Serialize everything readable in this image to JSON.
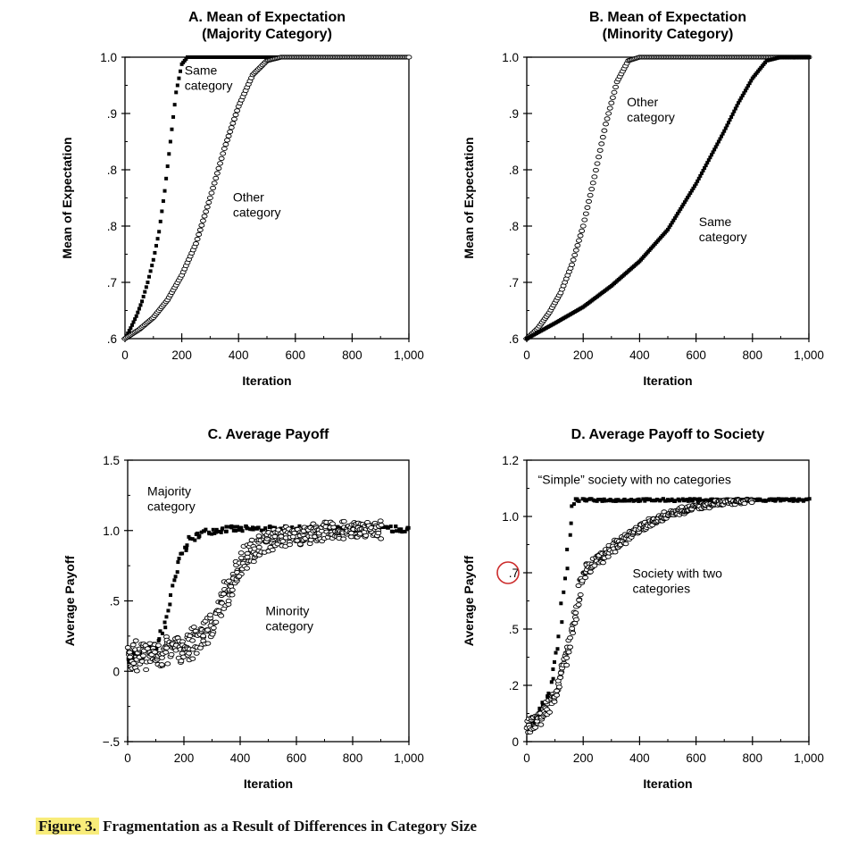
{
  "figure": {
    "caption_label": "Figure 3.",
    "caption_text": "Fragmentation as a Result of Differences in Category Size"
  },
  "colors": {
    "ink": "#000000",
    "highlight": "#f8ec7a",
    "marker_circle": "#cc2b2b"
  },
  "chart_data": [
    {
      "id": "A",
      "type": "line",
      "title": [
        "A. Mean of Expectation",
        "(Majority Category)"
      ],
      "xlabel": "Iteration",
      "ylabel": "Mean of Expectation",
      "xlim": [
        0,
        1000
      ],
      "ylim": [
        0.6,
        1.0
      ],
      "xticks": [
        0,
        200,
        400,
        600,
        800,
        1000
      ],
      "xtick_labels": [
        "0",
        "200",
        "400",
        "600",
        "800",
        "1,000"
      ],
      "yticks": [
        0.6,
        0.68,
        0.76,
        0.84,
        0.92,
        1.0
      ],
      "ytick_labels": [
        ".6",
        ".7",
        ".8",
        ".8",
        ".9",
        "1.0"
      ],
      "grid": false,
      "series": [
        {
          "name": "Same category",
          "marker": "filled",
          "x": [
            0,
            20,
            40,
            60,
            80,
            100,
            120,
            140,
            160,
            180,
            200,
            220,
            1000
          ],
          "y": [
            0.6,
            0.615,
            0.632,
            0.653,
            0.68,
            0.712,
            0.752,
            0.81,
            0.88,
            0.95,
            0.99,
            1.0,
            1.0
          ]
        },
        {
          "name": "Other category",
          "marker": "open",
          "x": [
            0,
            50,
            100,
            150,
            200,
            250,
            300,
            350,
            400,
            450,
            500,
            550,
            600,
            1000
          ],
          "y": [
            0.6,
            0.613,
            0.63,
            0.655,
            0.69,
            0.735,
            0.8,
            0.87,
            0.93,
            0.975,
            0.995,
            1.0,
            1.0,
            1.0
          ]
        }
      ],
      "annotations": [
        {
          "lines": [
            "Same",
            "category"
          ],
          "x": 210,
          "y": 0.975
        },
        {
          "lines": [
            "Other",
            "category"
          ],
          "x": 380,
          "y": 0.795
        }
      ]
    },
    {
      "id": "B",
      "type": "line",
      "title": [
        "B. Mean of Expectation",
        "(Minority Category)"
      ],
      "xlabel": "Iteration",
      "ylabel": "Mean of Expectation",
      "xlim": [
        0,
        1000
      ],
      "ylim": [
        0.6,
        1.0
      ],
      "xticks": [
        0,
        200,
        400,
        600,
        800,
        1000
      ],
      "xtick_labels": [
        "0",
        "200",
        "400",
        "600",
        "800",
        "1,000"
      ],
      "yticks": [
        0.6,
        0.68,
        0.76,
        0.84,
        0.92,
        1.0
      ],
      "ytick_labels": [
        ".6",
        ".7",
        ".8",
        ".8",
        ".9",
        "1.0"
      ],
      "grid": false,
      "series": [
        {
          "name": "Other category",
          "marker": "open",
          "x": [
            0,
            40,
            80,
            120,
            160,
            200,
            240,
            280,
            320,
            360,
            400,
            1000
          ],
          "y": [
            0.6,
            0.615,
            0.637,
            0.665,
            0.705,
            0.76,
            0.83,
            0.905,
            0.965,
            0.995,
            1.0,
            1.0
          ]
        },
        {
          "name": "Same category",
          "marker": "filled",
          "x": [
            0,
            100,
            200,
            300,
            400,
            500,
            600,
            700,
            750,
            800,
            850,
            900,
            1000
          ],
          "y": [
            0.6,
            0.622,
            0.645,
            0.675,
            0.71,
            0.755,
            0.82,
            0.895,
            0.935,
            0.97,
            0.995,
            1.0,
            1.0
          ]
        }
      ],
      "annotations": [
        {
          "lines": [
            "Other",
            "category"
          ],
          "x": 355,
          "y": 0.93
        },
        {
          "lines": [
            "Same",
            "category"
          ],
          "x": 610,
          "y": 0.76
        }
      ]
    },
    {
      "id": "C",
      "type": "scatter",
      "title": [
        "C. Average Payoff"
      ],
      "xlabel": "Iteration",
      "ylabel": "Average Payoff",
      "xlim": [
        0,
        1000
      ],
      "ylim": [
        -0.5,
        1.5
      ],
      "xticks": [
        0,
        200,
        400,
        600,
        800,
        1000
      ],
      "xtick_labels": [
        "0",
        "200",
        "400",
        "600",
        "800",
        "1,000"
      ],
      "yticks": [
        -0.5,
        0,
        0.5,
        1.0,
        1.5
      ],
      "ytick_labels": [
        "−.5",
        "0",
        ".5",
        "1.0",
        "1.5"
      ],
      "grid": false,
      "series": [
        {
          "name": "Majority category",
          "marker": "filled",
          "noise": 0.035,
          "x": [
            0,
            50,
            100,
            130,
            160,
            190,
            220,
            260,
            300,
            350,
            1000
          ],
          "y": [
            0.1,
            0.12,
            0.17,
            0.3,
            0.58,
            0.83,
            0.93,
            0.98,
            1.0,
            1.01,
            1.01
          ]
        },
        {
          "name": "Minority category",
          "marker": "open",
          "noise": 0.08,
          "x": [
            0,
            100,
            200,
            250,
            300,
            350,
            400,
            450,
            500,
            600,
            700,
            800,
            900
          ],
          "y": [
            0.1,
            0.12,
            0.17,
            0.22,
            0.33,
            0.55,
            0.76,
            0.87,
            0.93,
            0.97,
            0.99,
            1.0,
            1.01
          ]
        }
      ],
      "annotations": [
        {
          "lines": [
            "Majority",
            "category"
          ],
          "x": 70,
          "y": 1.25
        },
        {
          "lines": [
            "Minority",
            "category"
          ],
          "x": 490,
          "y": 0.4
        }
      ]
    },
    {
      "id": "D",
      "type": "scatter",
      "title": [
        "D. Average Payoff to Society"
      ],
      "xlabel": "Iteration",
      "ylabel": "Average Payoff",
      "xlim": [
        0,
        1000
      ],
      "ylim": [
        0.0,
        1.2
      ],
      "xticks": [
        0,
        200,
        400,
        600,
        800,
        1000
      ],
      "xtick_labels": [
        "0",
        "200",
        "400",
        "600",
        "800",
        "1,000"
      ],
      "yticks": [
        0.0,
        0.24,
        0.48,
        0.72,
        0.96,
        1.2
      ],
      "ytick_labels": [
        "0",
        ".2",
        ".5",
        ".7",
        "1.0",
        "1.2"
      ],
      "circled_tick": 3,
      "grid": false,
      "series": [
        {
          "name": "“Simple” society with no categories",
          "marker": "filled",
          "noise": 0.015,
          "x": [
            0,
            40,
            80,
            110,
            140,
            160,
            170,
            1000
          ],
          "y": [
            0.07,
            0.1,
            0.22,
            0.4,
            0.75,
            1.0,
            1.03,
            1.03
          ]
        },
        {
          "name": "Society with two categories",
          "marker": "open",
          "noise": 0.025,
          "x": [
            0,
            50,
            100,
            150,
            200,
            250,
            300,
            400,
            500,
            600,
            700,
            800
          ],
          "y": [
            0.07,
            0.1,
            0.2,
            0.4,
            0.72,
            0.77,
            0.82,
            0.91,
            0.97,
            1.0,
            1.02,
            1.03
          ]
        }
      ],
      "annotations": [
        {
          "lines": [
            "“Simple” society with no categories"
          ],
          "x": 40,
          "y": 1.1
        },
        {
          "lines": [
            "Society with two",
            "categories"
          ],
          "x": 375,
          "y": 0.7
        }
      ]
    }
  ]
}
